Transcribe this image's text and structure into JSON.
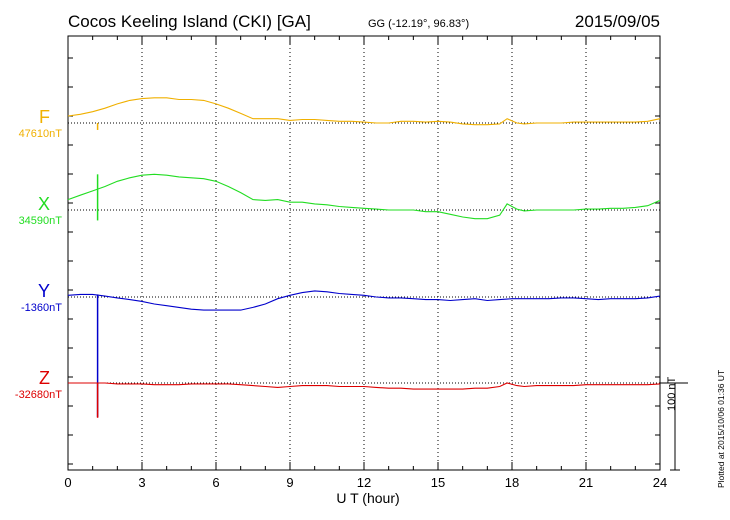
{
  "header": {
    "title": "Cocos Keeling Island (CKI)  [GA]",
    "coords": "GG (-12.19°,  96.83°)",
    "date": "2015/09/05"
  },
  "footer": {
    "plotted_note": "Plotted at 2015/10/06 01:36 UT",
    "scale_label": "100 nT"
  },
  "chart_data": {
    "type": "line",
    "xlabel": "U T (hour)",
    "xlim": [
      0,
      24
    ],
    "xticks": [
      "0",
      "3",
      "6",
      "9",
      "12",
      "15",
      "18",
      "21",
      "24"
    ],
    "grid": true,
    "y_unit": "nT",
    "scale_bar_nT": 100,
    "series": [
      {
        "name": "F",
        "baseline_label": "47610nT",
        "baseline_nT": 47610,
        "color": "#f0b000",
        "spike": {
          "x": 1.2,
          "delta_nT": [
            -8,
            0
          ]
        },
        "x": [
          0,
          0.5,
          1,
          1.5,
          2,
          2.5,
          3,
          3.5,
          4,
          4.5,
          5,
          5.5,
          6,
          6.5,
          7,
          7.5,
          8,
          8.5,
          9,
          9.5,
          10,
          10.5,
          11,
          11.5,
          12,
          12.5,
          13,
          13.5,
          14,
          14.5,
          15,
          15.5,
          16,
          16.5,
          17,
          17.5,
          17.8,
          18.2,
          18.5,
          19,
          19.5,
          20,
          20.5,
          21,
          21.5,
          22,
          22.5,
          23,
          23.5,
          24
        ],
        "delta_nT": [
          8,
          10,
          13,
          17,
          22,
          26,
          28,
          29,
          29,
          27,
          27,
          26,
          22,
          17,
          11,
          5,
          5,
          5,
          3,
          4,
          4,
          3,
          2,
          2,
          1,
          0,
          0,
          2,
          2,
          1,
          2,
          1,
          -1,
          -2,
          -2,
          -1,
          5,
          0,
          -1,
          0,
          0,
          0,
          1,
          1,
          1,
          1,
          1,
          1,
          2,
          5
        ]
      },
      {
        "name": "X",
        "baseline_label": "34590nT",
        "baseline_nT": 34590,
        "color": "#22dd22",
        "spike": {
          "x": 1.2,
          "delta_nT": [
            -12,
            41
          ]
        },
        "x": [
          0,
          0.5,
          1,
          1.5,
          2,
          2.5,
          3,
          3.5,
          4,
          4.5,
          5,
          5.5,
          6,
          6.5,
          7,
          7.5,
          8,
          8.5,
          9,
          9.5,
          10,
          10.5,
          11,
          11.5,
          12,
          12.5,
          13,
          13.5,
          14,
          14.5,
          15,
          15.5,
          16,
          16.5,
          17,
          17.5,
          17.8,
          18.2,
          18.5,
          19,
          19.5,
          20,
          20.5,
          21,
          21.5,
          22,
          22.5,
          23,
          23.5,
          24
        ],
        "delta_nT": [
          12,
          17,
          22,
          27,
          33,
          37,
          40,
          41,
          40,
          38,
          37,
          36,
          33,
          27,
          20,
          12,
          11,
          12,
          9,
          9,
          7,
          6,
          4,
          3,
          2,
          1,
          0,
          0,
          0,
          -2,
          -2,
          -5,
          -8,
          -10,
          -10,
          -6,
          7,
          1,
          -1,
          0,
          0,
          0,
          0,
          1,
          1,
          2,
          2,
          3,
          5,
          11
        ]
      },
      {
        "name": "Y",
        "baseline_label": "-1360nT",
        "baseline_nT": -1360,
        "color": "#0000cc",
        "spike": {
          "x": 1.2,
          "delta_nT": [
            -138,
            3
          ]
        },
        "x": [
          0,
          0.5,
          1,
          1.5,
          2,
          2.5,
          3,
          3.5,
          4,
          4.5,
          5,
          5.5,
          6,
          6.5,
          7,
          7.5,
          8,
          8.5,
          9,
          9.5,
          10,
          10.5,
          11,
          11.5,
          12,
          12.5,
          13,
          13.5,
          14,
          14.5,
          15,
          15.5,
          16,
          16.5,
          17,
          17.5,
          18,
          18.5,
          19,
          19.5,
          20,
          20.5,
          21,
          21.5,
          22,
          22.5,
          23,
          23.5,
          24
        ],
        "delta_nT": [
          2,
          3,
          3,
          1,
          -1,
          -3,
          -5,
          -8,
          -10,
          -12,
          -14,
          -15,
          -15,
          -15,
          -15,
          -12,
          -8,
          -2,
          2,
          5,
          7,
          6,
          4,
          3,
          2,
          0,
          -1,
          -1,
          -2,
          -3,
          -3,
          -4,
          -3,
          -2,
          -4,
          -3,
          -2,
          -2,
          -2,
          -2,
          -1,
          -1,
          -2,
          -3,
          -2,
          -2,
          -2,
          -1,
          1
        ]
      },
      {
        "name": "Z",
        "baseline_label": "-32680nT",
        "baseline_nT": -32680,
        "color": "#dd0000",
        "spike": {
          "x": 1.2,
          "delta_nT": [
            -40,
            0
          ]
        },
        "x": [
          0,
          0.5,
          1,
          1.5,
          2,
          2.5,
          3,
          3.5,
          4,
          4.5,
          5,
          5.5,
          6,
          6.5,
          7,
          7.5,
          8,
          8.5,
          9,
          9.5,
          10,
          10.5,
          11,
          11.5,
          12,
          12.5,
          13,
          13.5,
          14,
          14.5,
          15,
          15.5,
          16,
          16.5,
          17,
          17.5,
          17.8,
          18.2,
          18.5,
          19,
          19.5,
          20,
          20.5,
          21,
          21.5,
          22,
          22.5,
          23,
          23.5,
          24
        ],
        "delta_nT": [
          0,
          0,
          0,
          0,
          -1,
          -1,
          -1,
          -2,
          -2,
          -2,
          -1,
          -1,
          -1,
          -1,
          -2,
          -3,
          -4,
          -5,
          -4,
          -3,
          -3,
          -3,
          -4,
          -4,
          -4,
          -5,
          -6,
          -6,
          -7,
          -7,
          -7,
          -7,
          -7,
          -6,
          -6,
          -4,
          0,
          -3,
          -4,
          -3,
          -3,
          -3,
          -3,
          -2,
          -2,
          -2,
          -2,
          -2,
          -2,
          -1
        ]
      }
    ]
  }
}
